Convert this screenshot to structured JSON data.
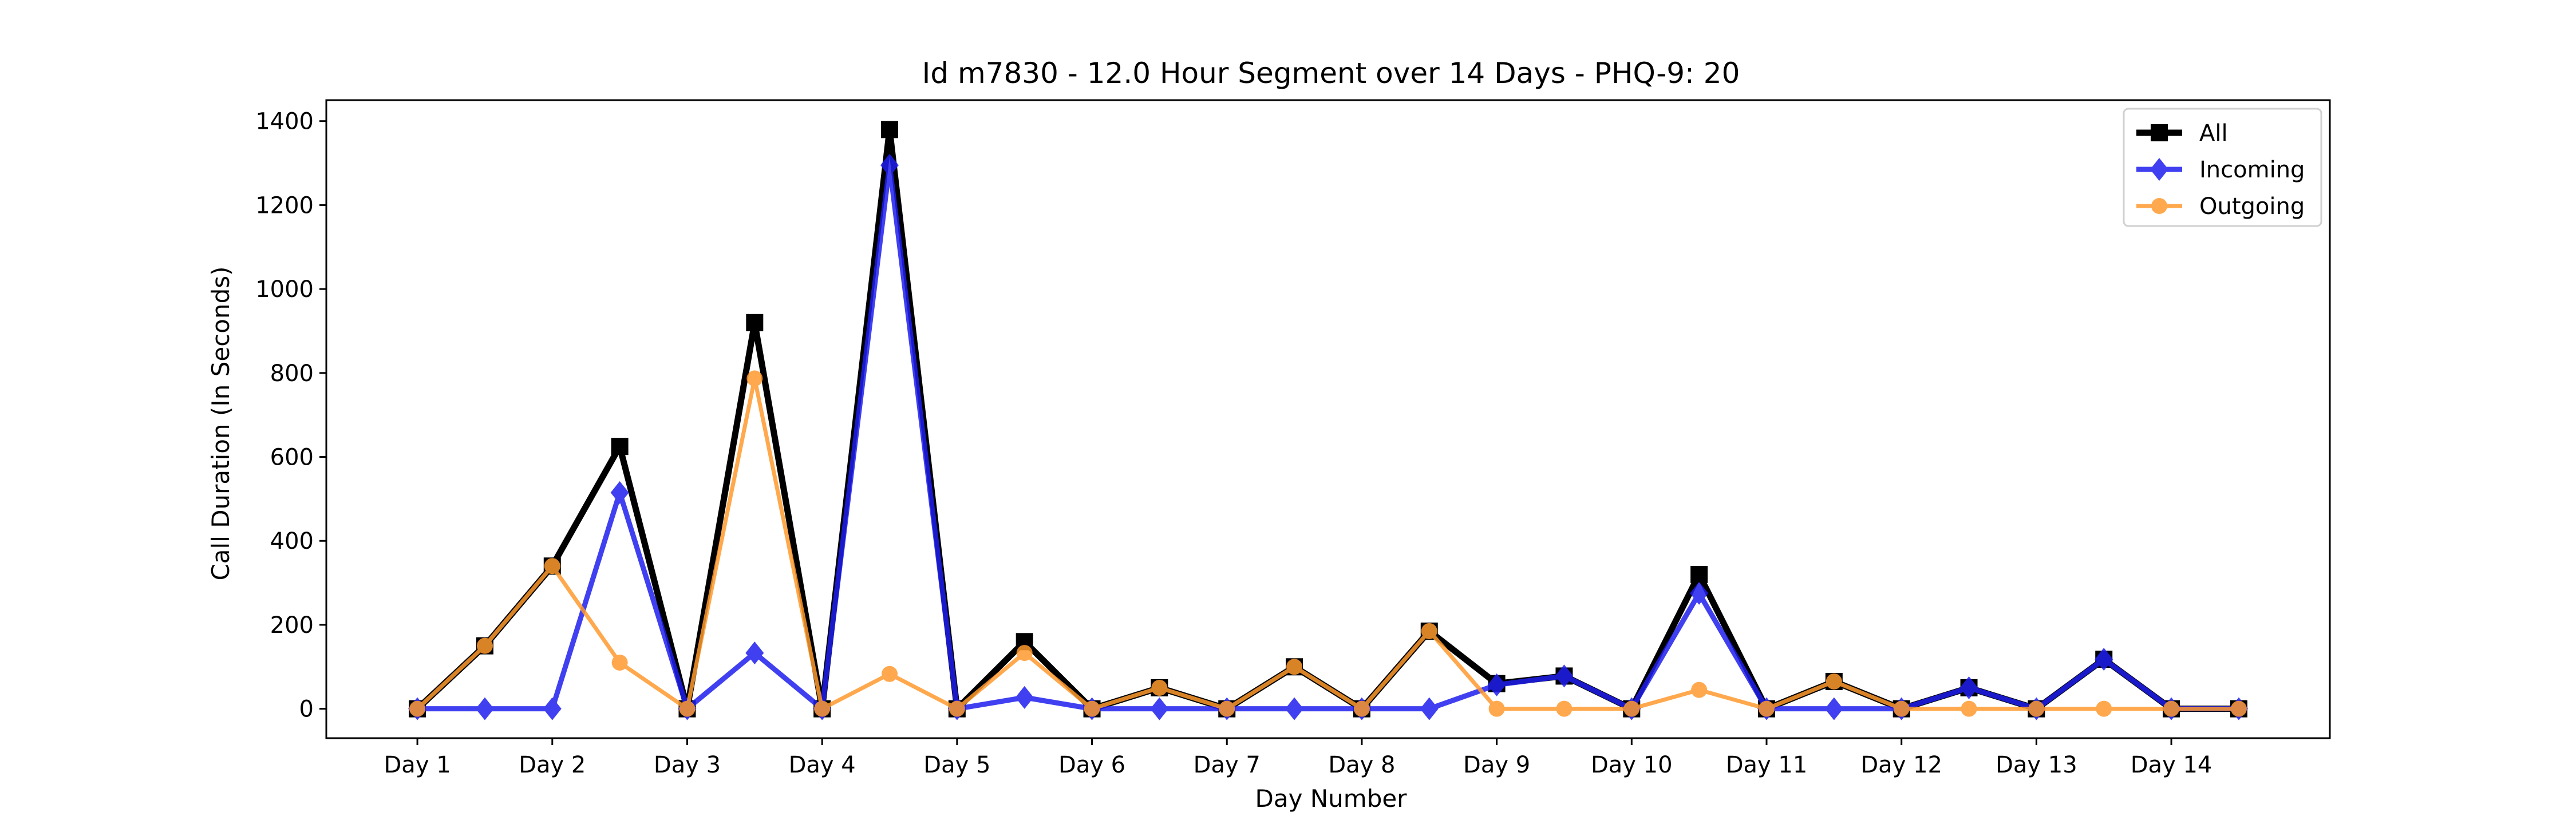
{
  "chart_data": {
    "type": "line",
    "title": "Id m7830 - 12.0 Hour Segment over 14 Days - PHQ-9: 20",
    "xlabel": "Day Number",
    "ylabel": "Call Duration (In Seconds)",
    "ylim": [
      -70,
      1450
    ],
    "yticks": [
      0,
      200,
      400,
      600,
      800,
      1000,
      1200,
      1400
    ],
    "xticks": [
      1,
      3,
      5,
      7,
      9,
      11,
      13,
      15,
      17,
      19,
      21,
      23,
      25,
      27
    ],
    "xtick_labels": [
      "Day 1",
      "Day 2",
      "Day 3",
      "Day 4",
      "Day 5",
      "Day 6",
      "Day 7",
      "Day 8",
      "Day 9",
      "Day 10",
      "Day 11",
      "Day 12",
      "Day 13",
      "Day 14"
    ],
    "xlim": [
      -0.35,
      29.35
    ],
    "x": [
      1,
      2,
      3,
      4,
      5,
      6,
      7,
      8,
      9,
      10,
      11,
      12,
      13,
      14,
      15,
      16,
      17,
      18,
      19,
      20,
      21,
      22,
      23,
      24,
      25,
      26,
      27,
      28
    ],
    "legend_position": "top-right",
    "grid": false,
    "series": [
      {
        "name": "All",
        "color": "#000000",
        "marker": "square",
        "values": [
          0,
          150,
          340,
          625,
          0,
          920,
          0,
          1380,
          0,
          160,
          0,
          50,
          0,
          100,
          0,
          185,
          60,
          78,
          0,
          320,
          0,
          65,
          0,
          50,
          0,
          118,
          0,
          0
        ]
      },
      {
        "name": "Incoming",
        "color": "#1f1fef",
        "marker": "diamond",
        "values": [
          0,
          0,
          0,
          515,
          0,
          133,
          0,
          1295,
          0,
          27,
          0,
          0,
          0,
          0,
          0,
          0,
          57,
          78,
          0,
          275,
          0,
          0,
          0,
          50,
          0,
          118,
          0,
          0
        ]
      },
      {
        "name": "Outgoing",
        "color": "#ff9a2e",
        "marker": "circle",
        "values": [
          0,
          150,
          340,
          110,
          0,
          787,
          0,
          83,
          0,
          133,
          0,
          50,
          0,
          100,
          0,
          185,
          0,
          0,
          0,
          45,
          0,
          65,
          0,
          0,
          0,
          0,
          0,
          0
        ]
      }
    ]
  }
}
